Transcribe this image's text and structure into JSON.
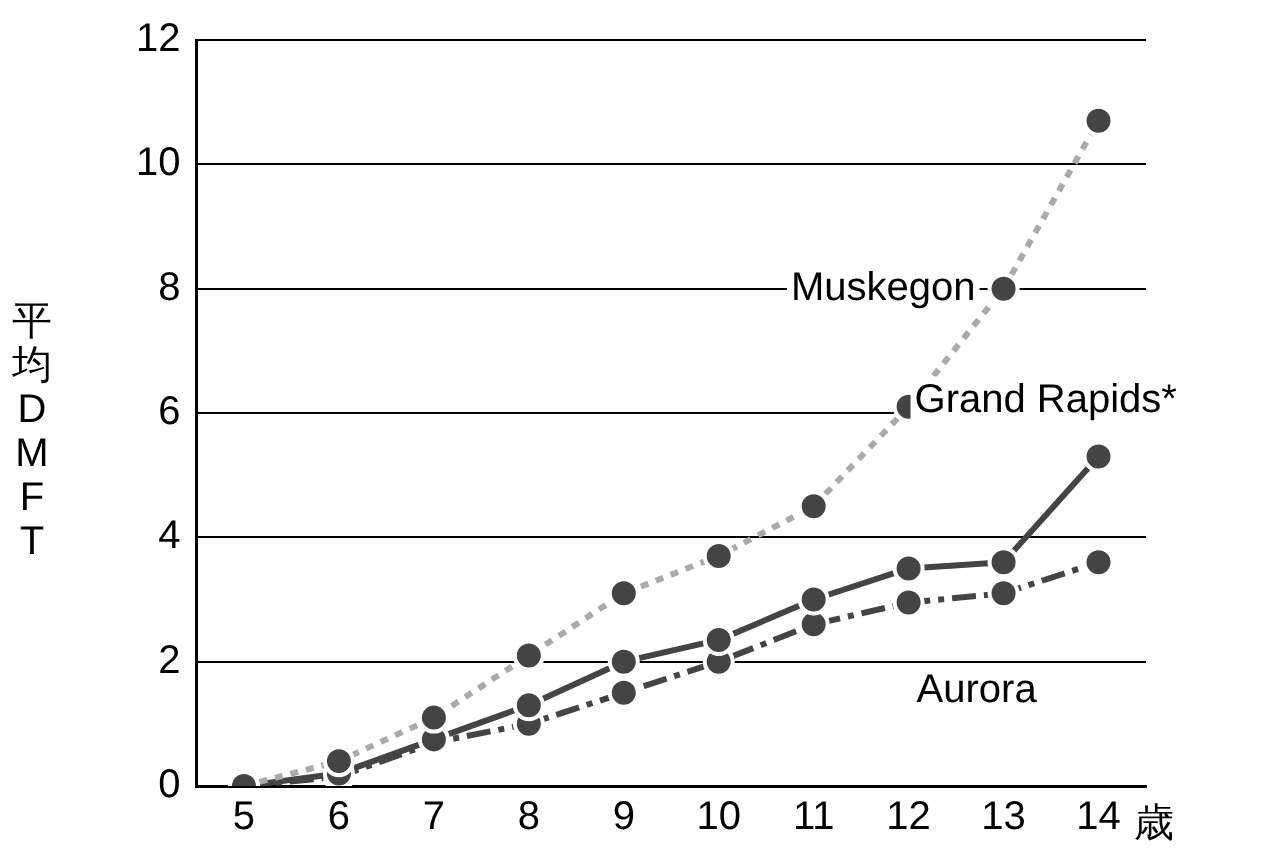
{
  "chart_data": {
    "type": "line",
    "xlabel": "歳",
    "ylabel": "平均DMFT",
    "categories": [
      "5",
      "6",
      "7",
      "8",
      "9",
      "10",
      "11",
      "12",
      "13",
      "14"
    ],
    "series": [
      {
        "name": "Muskegon",
        "color": "#aaaaaa",
        "line_style": "dotted",
        "values": [
          0,
          0.4,
          1.1,
          2.1,
          3.1,
          3.7,
          4.5,
          6.1,
          8.0,
          10.7
        ]
      },
      {
        "name": "Grand Rapids*",
        "color": "#444444",
        "line_style": "solid",
        "values": [
          0,
          0.2,
          0.75,
          1.3,
          2.0,
          2.35,
          3.0,
          3.5,
          3.6,
          5.3
        ]
      },
      {
        "name": "Aurora",
        "color": "#444444",
        "line_style": "dashed",
        "values": [
          0,
          0.15,
          0.7,
          1.0,
          1.5,
          2.0,
          2.6,
          2.95,
          3.1,
          3.6
        ]
      }
    ],
    "ylim": [
      0,
      12
    ],
    "yticks": [
      0,
      2,
      4,
      6,
      8,
      10,
      12
    ],
    "grid": "y",
    "legend": false,
    "marker": "circle"
  }
}
